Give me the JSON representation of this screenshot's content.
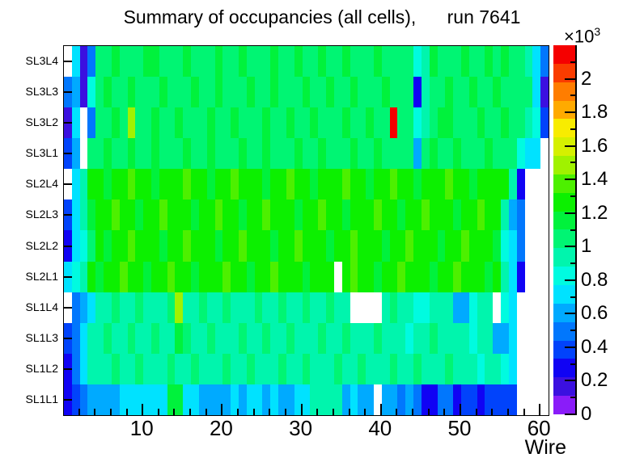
{
  "title": "Summary of occupancies (all cells),      run 7641",
  "axes": {
    "x": {
      "label": "Wire",
      "major_ticks": [
        10,
        20,
        30,
        40,
        50,
        60
      ],
      "minor_step": 2,
      "min": 0,
      "max": 61
    },
    "y": {
      "labels_top_to_bottom": [
        "SL3L4",
        "SL3L3",
        "SL3L2",
        "SL3L1",
        "SL2L4",
        "SL2L3",
        "SL2L2",
        "SL2L1",
        "SL1L4",
        "SL1L3",
        "SL1L2",
        "SL1L1"
      ]
    }
  },
  "colorbar": {
    "scale_prefix": "×10",
    "scale_exponent": "3",
    "min": 0,
    "max": 2.2,
    "bands": 20,
    "palette_low_to_high": [
      "#8a1cf9",
      "#3b10e0",
      "#1003f4",
      "#0143fb",
      "#0177fd",
      "#00aaff",
      "#00e2ff",
      "#00fbe0",
      "#00f5ad",
      "#00f573",
      "#00f23c",
      "#0cf000",
      "#4df000",
      "#a0f200",
      "#d5f000",
      "#f8ec00",
      "#ffaa00",
      "#ff7d00",
      "#fa3c00",
      "#f50000"
    ],
    "major_ticks": [
      {
        "v": 0,
        "label": "0"
      },
      {
        "v": 0.2,
        "label": "0.2"
      },
      {
        "v": 0.4,
        "label": "0.4"
      },
      {
        "v": 0.6,
        "label": "0.6"
      },
      {
        "v": 0.8,
        "label": "0.8"
      },
      {
        "v": 1,
        "label": "1"
      },
      {
        "v": 1.2,
        "label": "1.2"
      },
      {
        "v": 1.4,
        "label": "1.4"
      },
      {
        "v": 1.6,
        "label": "1.6"
      },
      {
        "v": 1.8,
        "label": "1.8"
      },
      {
        "v": 2,
        "label": "2"
      }
    ],
    "minor_tick_step": 0.1
  },
  "chart_data": {
    "type": "heatmap",
    "title": "Summary of occupancies (all cells),      run 7641",
    "xlabel": "Wire",
    "ylabel": "",
    "x_bins": {
      "min": 1,
      "max": 61,
      "count": 61
    },
    "z_unit": "counts ×10³",
    "zmin": 0,
    "zmax": 2.2,
    "empty_bins": "null = empty (white) bin",
    "rows_top_to_bottom": [
      "SL3L4",
      "SL3L3",
      "SL3L2",
      "SL3L1",
      "SL2L4",
      "SL2L3",
      "SL2L2",
      "SL2L1",
      "SL1L4",
      "SL1L3",
      "SL1L2",
      "SL1L1"
    ],
    "values_by_row_x1000": {
      "SL3L4": [
        null,
        0.72,
        0.15,
        0.5,
        1.05,
        1.05,
        1.15,
        1.05,
        1.05,
        1.05,
        1.15,
        1.15,
        1.05,
        1.05,
        1.05,
        1.15,
        1.05,
        1.05,
        1.05,
        1.15,
        1.05,
        1.05,
        1.15,
        1.05,
        1.05,
        1.05,
        1.15,
        1.05,
        1.05,
        1.15,
        1.05,
        1.05,
        1.15,
        1.05,
        1.05,
        1.15,
        1.05,
        1.05,
        1.05,
        1.15,
        1.05,
        1.05,
        1.05,
        1.05,
        0.82,
        0.93,
        1.15,
        1.05,
        1.05,
        1.05,
        1.15,
        1.05,
        1.05,
        1.15,
        1.05,
        1.15,
        1.05,
        1.05,
        0.93,
        0.72,
        0.5
      ],
      "SL3L3": [
        0.5,
        0.6,
        0.15,
        0.85,
        1.05,
        1.15,
        1.05,
        1.05,
        1.15,
        1.05,
        1.05,
        1.05,
        1.15,
        1.05,
        1.05,
        1.05,
        1.15,
        1.05,
        1.05,
        1.15,
        1.05,
        1.05,
        1.05,
        1.15,
        1.05,
        1.05,
        1.15,
        1.05,
        1.05,
        1.05,
        1.15,
        1.05,
        1.05,
        1.15,
        1.05,
        1.05,
        1.15,
        1.05,
        1.05,
        1.05,
        1.15,
        1.05,
        1.05,
        1.05,
        0.3,
        0.93,
        1.05,
        1.05,
        1.15,
        1.05,
        1.05,
        1.15,
        1.05,
        1.05,
        1.15,
        1.05,
        1.05,
        1.05,
        1.05,
        0.72,
        0.15
      ],
      "SL3L2": [
        0.15,
        0.72,
        null,
        0.5,
        1.05,
        1.05,
        1.15,
        1.05,
        1.45,
        1.05,
        1.05,
        1.15,
        1.05,
        1.05,
        1.15,
        1.05,
        1.05,
        1.05,
        1.15,
        1.05,
        1.05,
        1.15,
        1.05,
        1.05,
        1.05,
        1.15,
        1.05,
        1.05,
        1.15,
        1.05,
        1.05,
        1.15,
        1.05,
        1.05,
        1.05,
        1.15,
        1.05,
        1.05,
        1.15,
        1.05,
        1.05,
        2.15,
        1.05,
        1.05,
        0.8,
        0.93,
        1.05,
        1.15,
        1.15,
        1.05,
        1.05,
        1.05,
        1.15,
        1.05,
        1.05,
        1.15,
        1.05,
        1.05,
        0.93,
        0.82,
        0.4
      ],
      "SL3L1": [
        0.4,
        0.6,
        null,
        1.05,
        1.05,
        1.15,
        1.05,
        1.05,
        1.15,
        1.05,
        1.05,
        1.15,
        1.05,
        1.05,
        1.05,
        1.15,
        1.05,
        1.05,
        1.15,
        1.05,
        1.05,
        1.05,
        1.15,
        1.05,
        1.05,
        1.15,
        1.05,
        1.05,
        1.05,
        1.15,
        1.05,
        1.05,
        1.15,
        1.05,
        1.05,
        1.05,
        1.15,
        1.05,
        1.05,
        1.15,
        1.05,
        1.05,
        1.05,
        1.05,
        0.65,
        1.05,
        1.15,
        1.05,
        1.05,
        1.15,
        1.05,
        1.05,
        1.05,
        1.15,
        1.05,
        1.05,
        1.05,
        0.82,
        0.72,
        0.72,
        null
      ],
      "SL2L4": [
        null,
        0.72,
        0.93,
        1.25,
        1.25,
        1.15,
        1.25,
        1.25,
        1.35,
        1.25,
        1.25,
        1.15,
        1.25,
        1.25,
        1.25,
        1.35,
        1.25,
        1.25,
        1.15,
        1.25,
        1.25,
        1.35,
        1.25,
        1.25,
        1.25,
        1.15,
        1.25,
        1.25,
        1.35,
        1.25,
        1.25,
        1.15,
        1.25,
        1.25,
        1.25,
        1.35,
        1.25,
        1.25,
        1.15,
        1.25,
        1.25,
        1.35,
        1.25,
        1.25,
        1.15,
        1.25,
        1.25,
        1.25,
        1.35,
        1.25,
        1.25,
        1.15,
        1.25,
        1.25,
        1.25,
        1.25,
        0.93,
        0.28,
        null,
        null,
        null
      ],
      "SL2L3": [
        0.4,
        0.72,
        0.93,
        1.15,
        1.25,
        1.25,
        1.35,
        1.25,
        1.25,
        1.15,
        1.25,
        1.25,
        1.35,
        1.25,
        1.25,
        1.25,
        1.15,
        1.25,
        1.25,
        1.35,
        1.25,
        1.25,
        1.15,
        1.25,
        1.25,
        1.35,
        1.25,
        1.25,
        1.25,
        1.15,
        1.25,
        1.25,
        1.35,
        1.25,
        1.25,
        1.15,
        1.25,
        1.25,
        1.25,
        1.35,
        1.25,
        1.25,
        1.15,
        1.25,
        1.25,
        1.35,
        1.25,
        1.25,
        1.25,
        1.15,
        1.25,
        1.25,
        1.35,
        1.25,
        1.25,
        0.93,
        0.6,
        0.5,
        null,
        null,
        null
      ],
      "SL2L2": [
        0.28,
        0.72,
        0.82,
        1.05,
        1.25,
        1.15,
        1.25,
        1.25,
        1.35,
        1.25,
        1.25,
        1.25,
        1.15,
        1.25,
        1.25,
        1.35,
        1.25,
        1.25,
        1.25,
        1.15,
        1.25,
        1.25,
        1.35,
        1.25,
        1.25,
        1.25,
        1.15,
        1.25,
        1.25,
        1.35,
        1.25,
        1.25,
        1.25,
        1.15,
        1.25,
        1.25,
        1.35,
        1.25,
        1.25,
        1.25,
        1.15,
        1.25,
        1.25,
        1.35,
        1.25,
        1.25,
        1.25,
        1.15,
        1.25,
        1.25,
        1.35,
        1.25,
        1.25,
        1.25,
        1.15,
        0.82,
        0.72,
        0.5,
        null,
        null,
        null
      ],
      "SL2L1": [
        0.72,
        0.82,
        0.93,
        1.25,
        1.15,
        1.25,
        1.25,
        1.35,
        1.25,
        1.25,
        1.15,
        1.25,
        1.25,
        1.35,
        1.25,
        1.25,
        1.15,
        1.25,
        1.25,
        1.25,
        1.35,
        1.25,
        1.25,
        1.15,
        1.25,
        1.25,
        1.35,
        1.25,
        1.25,
        1.25,
        1.15,
        1.25,
        1.25,
        1.25,
        null,
        1.25,
        1.35,
        1.25,
        1.25,
        1.15,
        1.25,
        1.25,
        1.35,
        1.25,
        1.25,
        1.25,
        1.15,
        1.25,
        1.25,
        1.35,
        1.25,
        1.25,
        1.25,
        1.15,
        1.25,
        0.93,
        0.72,
        0.25,
        null,
        null,
        null
      ],
      "SL1L4": [
        null,
        0.5,
        0.6,
        0.72,
        0.93,
        0.93,
        1.05,
        0.93,
        0.93,
        1.05,
        0.93,
        0.93,
        0.93,
        1.05,
        1.5,
        0.93,
        0.93,
        1.05,
        0.93,
        0.93,
        1.05,
        0.93,
        0.93,
        0.93,
        1.05,
        0.93,
        0.93,
        1.05,
        0.93,
        0.93,
        1.05,
        0.93,
        0.93,
        1.05,
        0.93,
        0.93,
        null,
        null,
        null,
        null,
        0.93,
        1.05,
        0.93,
        0.93,
        0.82,
        0.82,
        0.93,
        0.93,
        0.93,
        0.6,
        0.6,
        0.82,
        0.93,
        0.93,
        null,
        0.82,
        0.72,
        null,
        null,
        null,
        null
      ],
      "SL1L3": [
        0.4,
        0.5,
        0.72,
        0.93,
        0.93,
        1.05,
        0.93,
        0.93,
        1.05,
        0.93,
        0.93,
        1.05,
        0.93,
        0.93,
        1.15,
        1.05,
        0.93,
        0.93,
        1.05,
        0.93,
        0.93,
        0.93,
        1.05,
        0.93,
        0.93,
        1.05,
        0.93,
        0.93,
        1.05,
        0.93,
        0.93,
        0.93,
        1.05,
        0.93,
        0.93,
        1.05,
        0.93,
        0.93,
        0.93,
        1.05,
        0.93,
        0.93,
        0.93,
        0.82,
        0.93,
        0.93,
        1.05,
        0.93,
        0.93,
        0.93,
        0.93,
        0.82,
        0.93,
        0.93,
        0.6,
        0.6,
        0.72,
        null,
        null,
        null,
        null
      ],
      "SL1L2": [
        0.28,
        0.5,
        0.72,
        0.93,
        0.93,
        0.93,
        1.05,
        0.93,
        0.93,
        1.05,
        0.93,
        0.93,
        0.93,
        1.05,
        0.93,
        0.93,
        1.05,
        0.93,
        0.93,
        0.93,
        1.05,
        0.93,
        0.93,
        1.05,
        0.93,
        0.93,
        0.93,
        1.05,
        0.93,
        0.93,
        1.05,
        0.93,
        0.93,
        0.93,
        1.05,
        0.93,
        0.93,
        1.05,
        0.93,
        0.93,
        0.93,
        1.05,
        0.93,
        0.93,
        1.05,
        0.93,
        0.93,
        0.93,
        1.05,
        0.93,
        0.93,
        0.93,
        0.82,
        0.93,
        0.93,
        0.82,
        0.72,
        null,
        null,
        null,
        null
      ],
      "SL1L1": [
        0.28,
        0.4,
        0.5,
        0.6,
        0.6,
        0.6,
        0.6,
        0.72,
        0.72,
        0.72,
        0.72,
        0.72,
        0.72,
        1.15,
        1.15,
        0.72,
        0.72,
        0.6,
        0.6,
        0.6,
        0.6,
        0.72,
        0.6,
        0.72,
        0.72,
        0.6,
        0.72,
        0.6,
        0.6,
        0.72,
        0.72,
        0.93,
        0.93,
        0.93,
        0.93,
        0.6,
        0.72,
        0.6,
        0.6,
        null,
        0.6,
        0.6,
        0.5,
        0.6,
        0.5,
        0.28,
        0.28,
        0.5,
        0.5,
        0.28,
        0.4,
        0.4,
        0.28,
        0.4,
        0.4,
        0.4,
        0.4,
        null,
        null,
        null,
        null
      ]
    }
  }
}
